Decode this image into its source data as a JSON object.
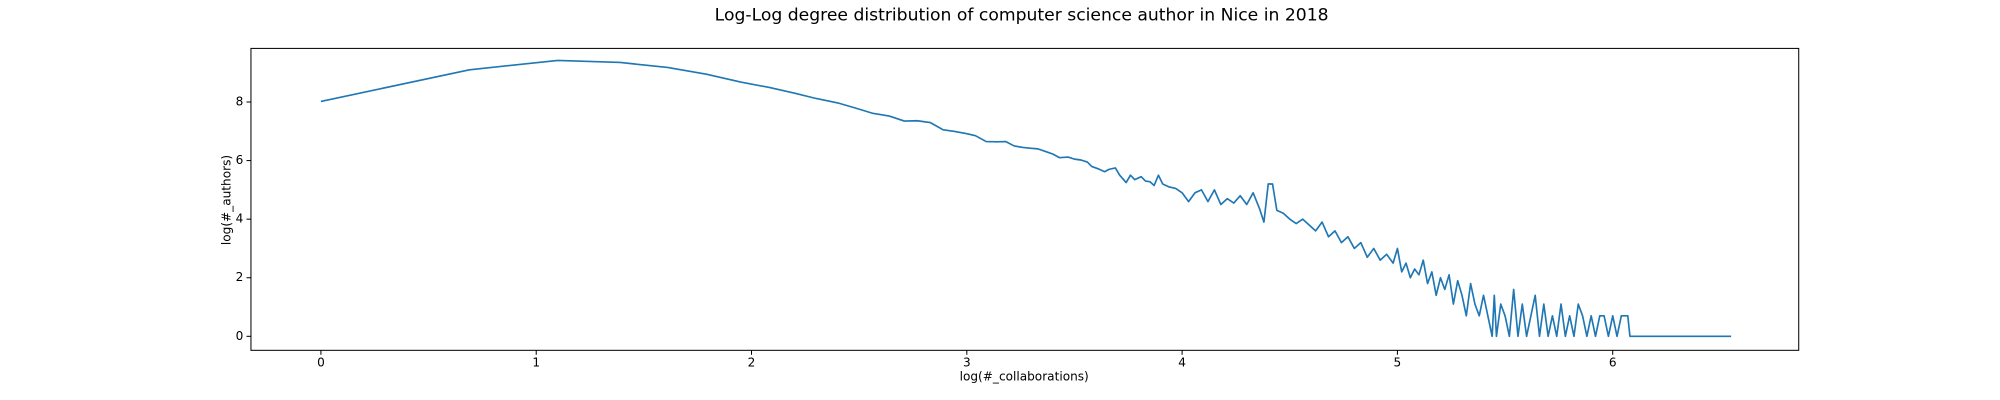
{
  "chart_data": {
    "type": "line",
    "title": "Log-Log degree distribution of computer science author in Nice in 2018",
    "xlabel": "log(#_collaborations)",
    "ylabel": "log(#_authors)",
    "xlim": [
      -0.325,
      6.864
    ],
    "ylim": [
      -0.478,
      9.83
    ],
    "xticks": [
      0,
      1,
      2,
      3,
      4,
      5,
      6
    ],
    "yticks": [
      0,
      2,
      4,
      6,
      8
    ],
    "color": "#1f77b4",
    "x": [
      0,
      0.69,
      1.1,
      1.39,
      1.61,
      1.79,
      1.95,
      2.08,
      2.2,
      2.3,
      2.4,
      2.48,
      2.56,
      2.64,
      2.71,
      2.77,
      2.83,
      2.89,
      2.94,
      3.0,
      3.04,
      3.09,
      3.14,
      3.18,
      3.22,
      3.26,
      3.3,
      3.33,
      3.37,
      3.4,
      3.43,
      3.47,
      3.5,
      3.53,
      3.56,
      3.58,
      3.61,
      3.64,
      3.66,
      3.69,
      3.71,
      3.74,
      3.76,
      3.78,
      3.81,
      3.83,
      3.85,
      3.87,
      3.89,
      3.91,
      3.94,
      3.97,
      4.0,
      4.03,
      4.06,
      4.09,
      4.12,
      4.15,
      4.18,
      4.21,
      4.24,
      4.27,
      4.3,
      4.33,
      4.36,
      4.38,
      4.4,
      4.42,
      4.44,
      4.47,
      4.5,
      4.53,
      4.56,
      4.59,
      4.62,
      4.65,
      4.68,
      4.71,
      4.74,
      4.77,
      4.8,
      4.83,
      4.86,
      4.89,
      4.92,
      4.95,
      4.98,
      5.0,
      5.02,
      5.04,
      5.06,
      5.08,
      5.1,
      5.12,
      5.14,
      5.16,
      5.18,
      5.2,
      5.22,
      5.24,
      5.26,
      5.28,
      5.3,
      5.32,
      5.34,
      5.36,
      5.38,
      5.4,
      5.42,
      5.44,
      5.45,
      5.46,
      5.48,
      5.5,
      5.52,
      5.54,
      5.56,
      5.58,
      5.6,
      5.62,
      5.64,
      5.66,
      5.68,
      5.7,
      5.72,
      5.74,
      5.76,
      5.78,
      5.8,
      5.82,
      5.84,
      5.86,
      5.88,
      5.9,
      5.92,
      5.94,
      5.96,
      5.98,
      6.0,
      6.02,
      6.04,
      6.07,
      6.08,
      6.55
    ],
    "values": [
      8.02,
      9.1,
      9.42,
      9.35,
      9.18,
      8.95,
      8.68,
      8.5,
      8.3,
      8.12,
      7.97,
      7.8,
      7.62,
      7.52,
      7.35,
      7.36,
      7.3,
      7.05,
      7.0,
      6.92,
      6.85,
      6.65,
      6.64,
      6.65,
      6.5,
      6.45,
      6.42,
      6.4,
      6.3,
      6.22,
      6.1,
      6.12,
      6.05,
      6.02,
      5.95,
      5.8,
      5.72,
      5.62,
      5.7,
      5.75,
      5.5,
      5.25,
      5.5,
      5.35,
      5.45,
      5.3,
      5.28,
      5.15,
      5.5,
      5.2,
      5.1,
      5.05,
      4.9,
      4.6,
      4.9,
      5.0,
      4.6,
      5.0,
      4.5,
      4.7,
      4.55,
      4.8,
      4.5,
      4.9,
      4.35,
      3.9,
      5.2,
      5.2,
      4.3,
      4.2,
      4.0,
      3.85,
      4.0,
      3.8,
      3.6,
      3.9,
      3.4,
      3.6,
      3.2,
      3.4,
      3.0,
      3.2,
      2.7,
      3.0,
      2.6,
      2.8,
      2.5,
      3.0,
      2.2,
      2.5,
      2.0,
      2.3,
      2.1,
      2.6,
      1.8,
      2.2,
      1.4,
      2.0,
      1.6,
      2.1,
      1.1,
      1.9,
      1.4,
      0.7,
      1.8,
      1.1,
      0.7,
      1.4,
      0.7,
      0,
      1.4,
      0,
      1.1,
      0.7,
      0,
      1.6,
      0,
      1.1,
      0,
      0.7,
      1.4,
      0,
      1.1,
      0,
      0.7,
      0,
      1.1,
      0,
      0.7,
      0,
      1.1,
      0.7,
      0,
      0.7,
      0,
      0.7,
      0.7,
      0,
      0.7,
      0,
      0.7,
      0.7,
      0,
      0
    ]
  }
}
